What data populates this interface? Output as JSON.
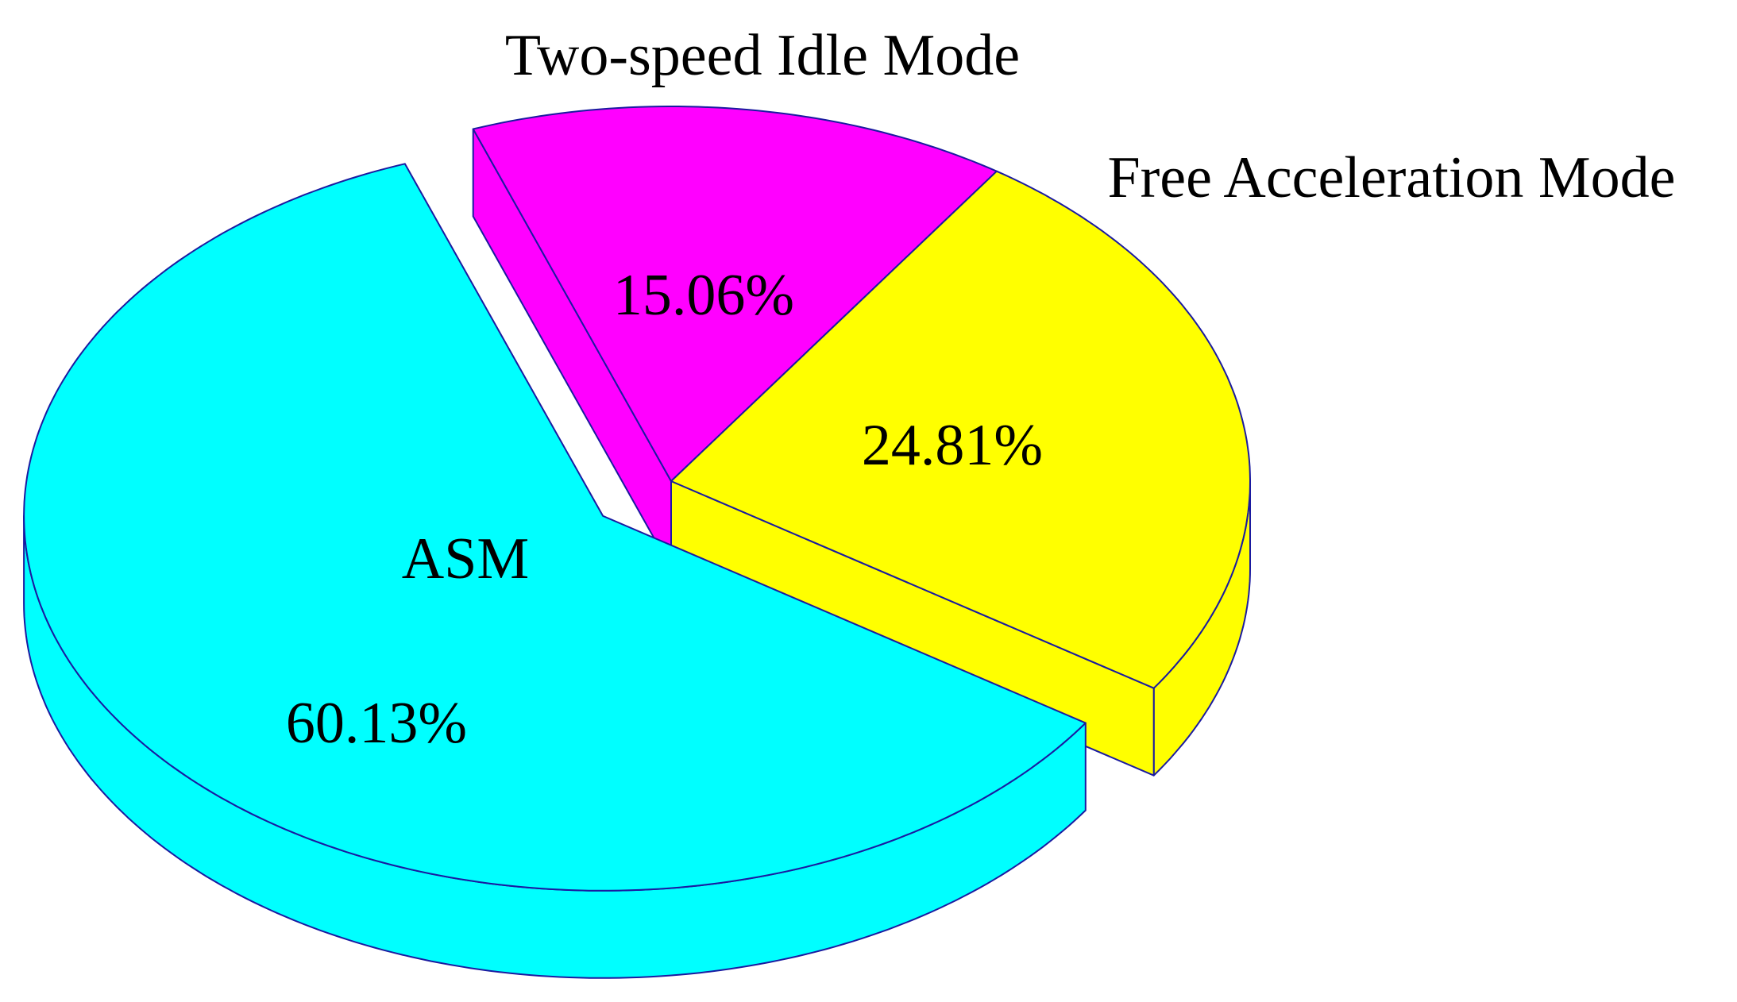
{
  "chart_data": {
    "type": "pie",
    "categories": [
      "ASM",
      "Free Acceleration Mode",
      "Two-speed Idle Mode"
    ],
    "values": [
      60.13,
      24.81,
      15.06
    ],
    "value_labels": [
      "60.13%",
      "24.81%",
      "15.06%"
    ],
    "colors": [
      "#00ffff",
      "#ffff00",
      "#ff00ff"
    ]
  }
}
